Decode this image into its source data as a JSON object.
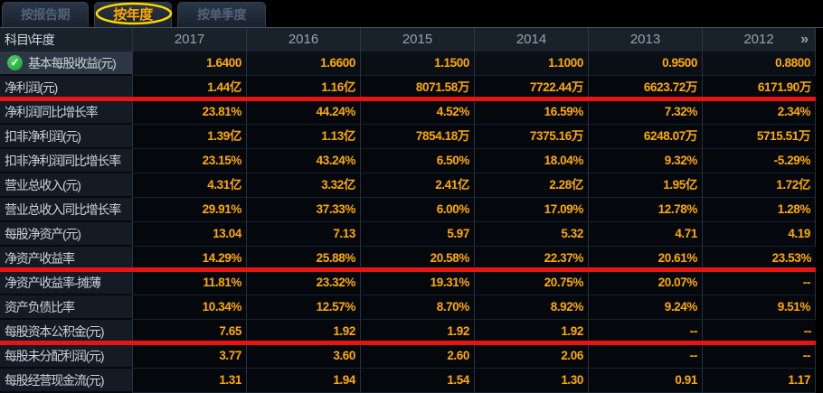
{
  "tabs": [
    {
      "label": "按报告期",
      "active": false
    },
    {
      "label": "按年度",
      "active": true
    },
    {
      "label": "按单季度",
      "active": false
    }
  ],
  "table": {
    "corner_header": "科目\\年度",
    "years": [
      "2017",
      "2016",
      "2015",
      "2014",
      "2013",
      "2012"
    ],
    "more_icon": "»",
    "rows": [
      {
        "label": "基本每股收益(元)",
        "values": [
          "1.6400",
          "1.6600",
          "1.1500",
          "1.1000",
          "0.9500",
          "0.8800"
        ],
        "checked": true,
        "highlighted": true,
        "redline": false
      },
      {
        "label": "净利润(元)",
        "values": [
          "1.44亿",
          "1.16亿",
          "8071.58万",
          "7722.44万",
          "6623.72万",
          "6171.90万"
        ],
        "checked": false,
        "highlighted": false,
        "redline": true
      },
      {
        "label": "净利润同比增长率",
        "values": [
          "23.81%",
          "44.24%",
          "4.52%",
          "16.59%",
          "7.32%",
          "2.34%"
        ],
        "checked": false,
        "highlighted": false,
        "redline": false
      },
      {
        "label": "扣非净利润(元)",
        "values": [
          "1.39亿",
          "1.13亿",
          "7854.18万",
          "7375.16万",
          "6248.07万",
          "5715.51万"
        ],
        "checked": false,
        "highlighted": false,
        "redline": false
      },
      {
        "label": "扣非净利润同比增长率",
        "values": [
          "23.15%",
          "43.24%",
          "6.50%",
          "18.04%",
          "9.32%",
          "-5.29%"
        ],
        "checked": false,
        "highlighted": false,
        "redline": false
      },
      {
        "label": "营业总收入(元)",
        "values": [
          "4.31亿",
          "3.32亿",
          "2.41亿",
          "2.28亿",
          "1.95亿",
          "1.72亿"
        ],
        "checked": false,
        "highlighted": false,
        "redline": false
      },
      {
        "label": "营业总收入同比增长率",
        "values": [
          "29.91%",
          "37.33%",
          "6.00%",
          "17.09%",
          "12.78%",
          "1.28%"
        ],
        "checked": false,
        "highlighted": false,
        "redline": false
      },
      {
        "label": "每股净资产(元)",
        "values": [
          "13.04",
          "7.13",
          "5.97",
          "5.32",
          "4.71",
          "4.19"
        ],
        "checked": false,
        "highlighted": false,
        "redline": false
      },
      {
        "label": "净资产收益率",
        "values": [
          "14.29%",
          "25.88%",
          "20.58%",
          "22.37%",
          "20.61%",
          "23.53%"
        ],
        "checked": false,
        "highlighted": false,
        "redline": true
      },
      {
        "label": "净资产收益率-摊薄",
        "values": [
          "11.81%",
          "23.32%",
          "19.31%",
          "20.75%",
          "20.07%",
          "--"
        ],
        "checked": false,
        "highlighted": false,
        "redline": false
      },
      {
        "label": "资产负债比率",
        "values": [
          "10.34%",
          "12.57%",
          "8.70%",
          "8.92%",
          "9.24%",
          "9.51%"
        ],
        "checked": false,
        "highlighted": false,
        "redline": false
      },
      {
        "label": "每股资本公积金(元)",
        "values": [
          "7.65",
          "1.92",
          "1.92",
          "1.92",
          "--",
          "--"
        ],
        "checked": false,
        "highlighted": false,
        "redline": true
      },
      {
        "label": "每股未分配利润(元)",
        "values": [
          "3.77",
          "3.60",
          "2.60",
          "2.06",
          "--",
          "--"
        ],
        "checked": false,
        "highlighted": false,
        "redline": false
      },
      {
        "label": "每股经营现金流(元)",
        "values": [
          "1.31",
          "1.94",
          "1.54",
          "1.30",
          "0.91",
          "1.17"
        ],
        "checked": false,
        "highlighted": false,
        "redline": false
      }
    ]
  },
  "icons": {
    "check": "✓"
  },
  "colors": {
    "value_text": "#ffab00",
    "red_marker": "#e81414",
    "active_tab_text": "#ffaa00",
    "ellipse_stroke": "#ffd800"
  }
}
